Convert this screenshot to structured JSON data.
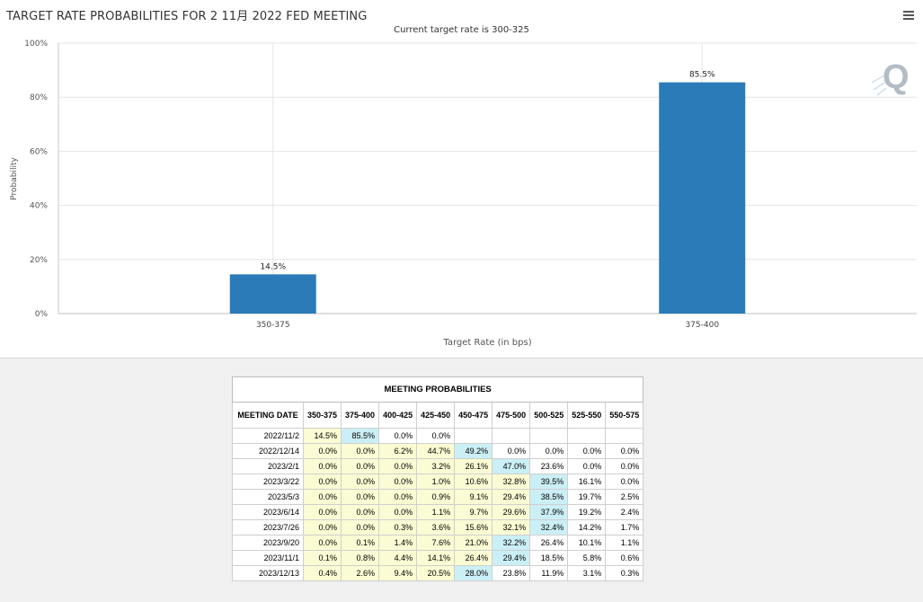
{
  "chart_data": {
    "type": "bar",
    "title": "TARGET RATE PROBABILITIES FOR 2 11月 2022 FED MEETING",
    "subtitle": "Current target rate is 300-325",
    "xlabel": "Target Rate (in bps)",
    "ylabel": "Probability",
    "categories": [
      "350-375",
      "375-400"
    ],
    "values": [
      14.5,
      85.5
    ],
    "data_labels": [
      "14.5%",
      "85.5%"
    ],
    "ylim": [
      0,
      100
    ],
    "yticks": [
      "0%",
      "20%",
      "40%",
      "60%",
      "80%",
      "100%"
    ],
    "grid": true,
    "bar_color": "#2b7bb9"
  },
  "menu_icon": "hamburger-menu-icon",
  "watermark_icon": "quikstrike-q-logo-icon",
  "table": {
    "title": "MEETING PROBABILITIES",
    "headers": [
      "MEETING DATE",
      "350-375",
      "375-400",
      "400-425",
      "425-450",
      "450-475",
      "475-500",
      "500-525",
      "525-550",
      "550-575"
    ],
    "rows": [
      {
        "date": "2022/11/2",
        "values": [
          "14.5%",
          "85.5%",
          "0.0%",
          "0.0%",
          "",
          "",
          "",
          "",
          ""
        ],
        "highlight": 1
      },
      {
        "date": "2022/12/14",
        "values": [
          "0.0%",
          "0.0%",
          "6.2%",
          "44.7%",
          "49.2%",
          "0.0%",
          "0.0%",
          "0.0%",
          "0.0%"
        ],
        "highlight": 4
      },
      {
        "date": "2023/2/1",
        "values": [
          "0.0%",
          "0.0%",
          "0.0%",
          "3.2%",
          "26.1%",
          "47.0%",
          "23.6%",
          "0.0%",
          "0.0%"
        ],
        "highlight": 5
      },
      {
        "date": "2023/3/22",
        "values": [
          "0.0%",
          "0.0%",
          "0.0%",
          "1.0%",
          "10.6%",
          "32.8%",
          "39.5%",
          "16.1%",
          "0.0%"
        ],
        "highlight": 6
      },
      {
        "date": "2023/5/3",
        "values": [
          "0.0%",
          "0.0%",
          "0.0%",
          "0.9%",
          "9.1%",
          "29.4%",
          "38.5%",
          "19.7%",
          "2.5%"
        ],
        "highlight": 6
      },
      {
        "date": "2023/6/14",
        "values": [
          "0.0%",
          "0.0%",
          "0.0%",
          "1.1%",
          "9.7%",
          "29.6%",
          "37.9%",
          "19.2%",
          "2.4%"
        ],
        "highlight": 6
      },
      {
        "date": "2023/7/26",
        "values": [
          "0.0%",
          "0.0%",
          "0.3%",
          "3.6%",
          "15.6%",
          "32.1%",
          "32.4%",
          "14.2%",
          "1.7%"
        ],
        "highlight": 6
      },
      {
        "date": "2023/9/20",
        "values": [
          "0.0%",
          "0.1%",
          "1.4%",
          "7.6%",
          "21.0%",
          "32.2%",
          "26.4%",
          "10.1%",
          "1.1%"
        ],
        "highlight": 5
      },
      {
        "date": "2023/11/1",
        "values": [
          "0.1%",
          "0.8%",
          "4.4%",
          "14.1%",
          "26.4%",
          "29.4%",
          "18.5%",
          "5.8%",
          "0.6%"
        ],
        "highlight": 5
      },
      {
        "date": "2023/12/13",
        "values": [
          "0.4%",
          "2.6%",
          "9.4%",
          "20.5%",
          "28.0%",
          "23.8%",
          "11.9%",
          "3.1%",
          "0.3%"
        ],
        "highlight": 4
      }
    ],
    "colors": {
      "yellow": "#fbfbd4",
      "blue": "#cbeff6"
    }
  }
}
